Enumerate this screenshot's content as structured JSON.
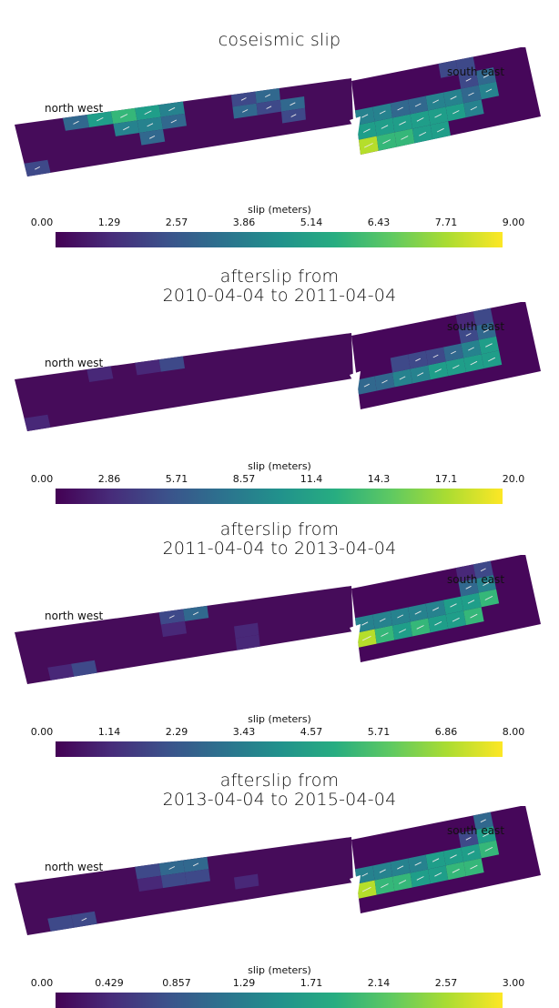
{
  "panels": [
    {
      "title": "coseismic slip",
      "label_nw": "north west",
      "label_se": "south east",
      "cbar_title": "slip (meters)",
      "ticks": [
        "0.00",
        "1.29",
        "2.57",
        "3.86",
        "5.14",
        "6.43",
        "7.71",
        "9.00"
      ],
      "cbar_range": [
        0,
        9
      ]
    },
    {
      "title": "afterslip from\n2010-04-04 to 2011-04-04",
      "label_nw": "north west",
      "label_se": "south east",
      "cbar_title": "slip (meters)",
      "ticks": [
        "0.00",
        "2.86",
        "5.71",
        "8.57",
        "11.4",
        "14.3",
        "17.1",
        "20.0"
      ],
      "cbar_range": [
        0,
        20
      ]
    },
    {
      "title": "afterslip from\n2011-04-04 to 2013-04-04",
      "label_nw": "north west",
      "label_se": "south east",
      "cbar_title": "slip (meters)",
      "ticks": [
        "0.00",
        "1.14",
        "2.29",
        "3.43",
        "4.57",
        "5.71",
        "6.86",
        "8.00"
      ],
      "cbar_range": [
        0,
        8
      ]
    },
    {
      "title": "afterslip from\n2013-04-04 to 2015-04-04",
      "label_nw": "north west",
      "label_se": "south east",
      "cbar_title": "slip (meters)",
      "ticks": [
        "0.00",
        "0.429",
        "0.857",
        "1.29",
        "1.71",
        "2.14",
        "2.57",
        "3.00"
      ],
      "cbar_range": [
        0,
        3
      ]
    }
  ],
  "colormap": "viridis",
  "background_color": "#ffffff"
}
